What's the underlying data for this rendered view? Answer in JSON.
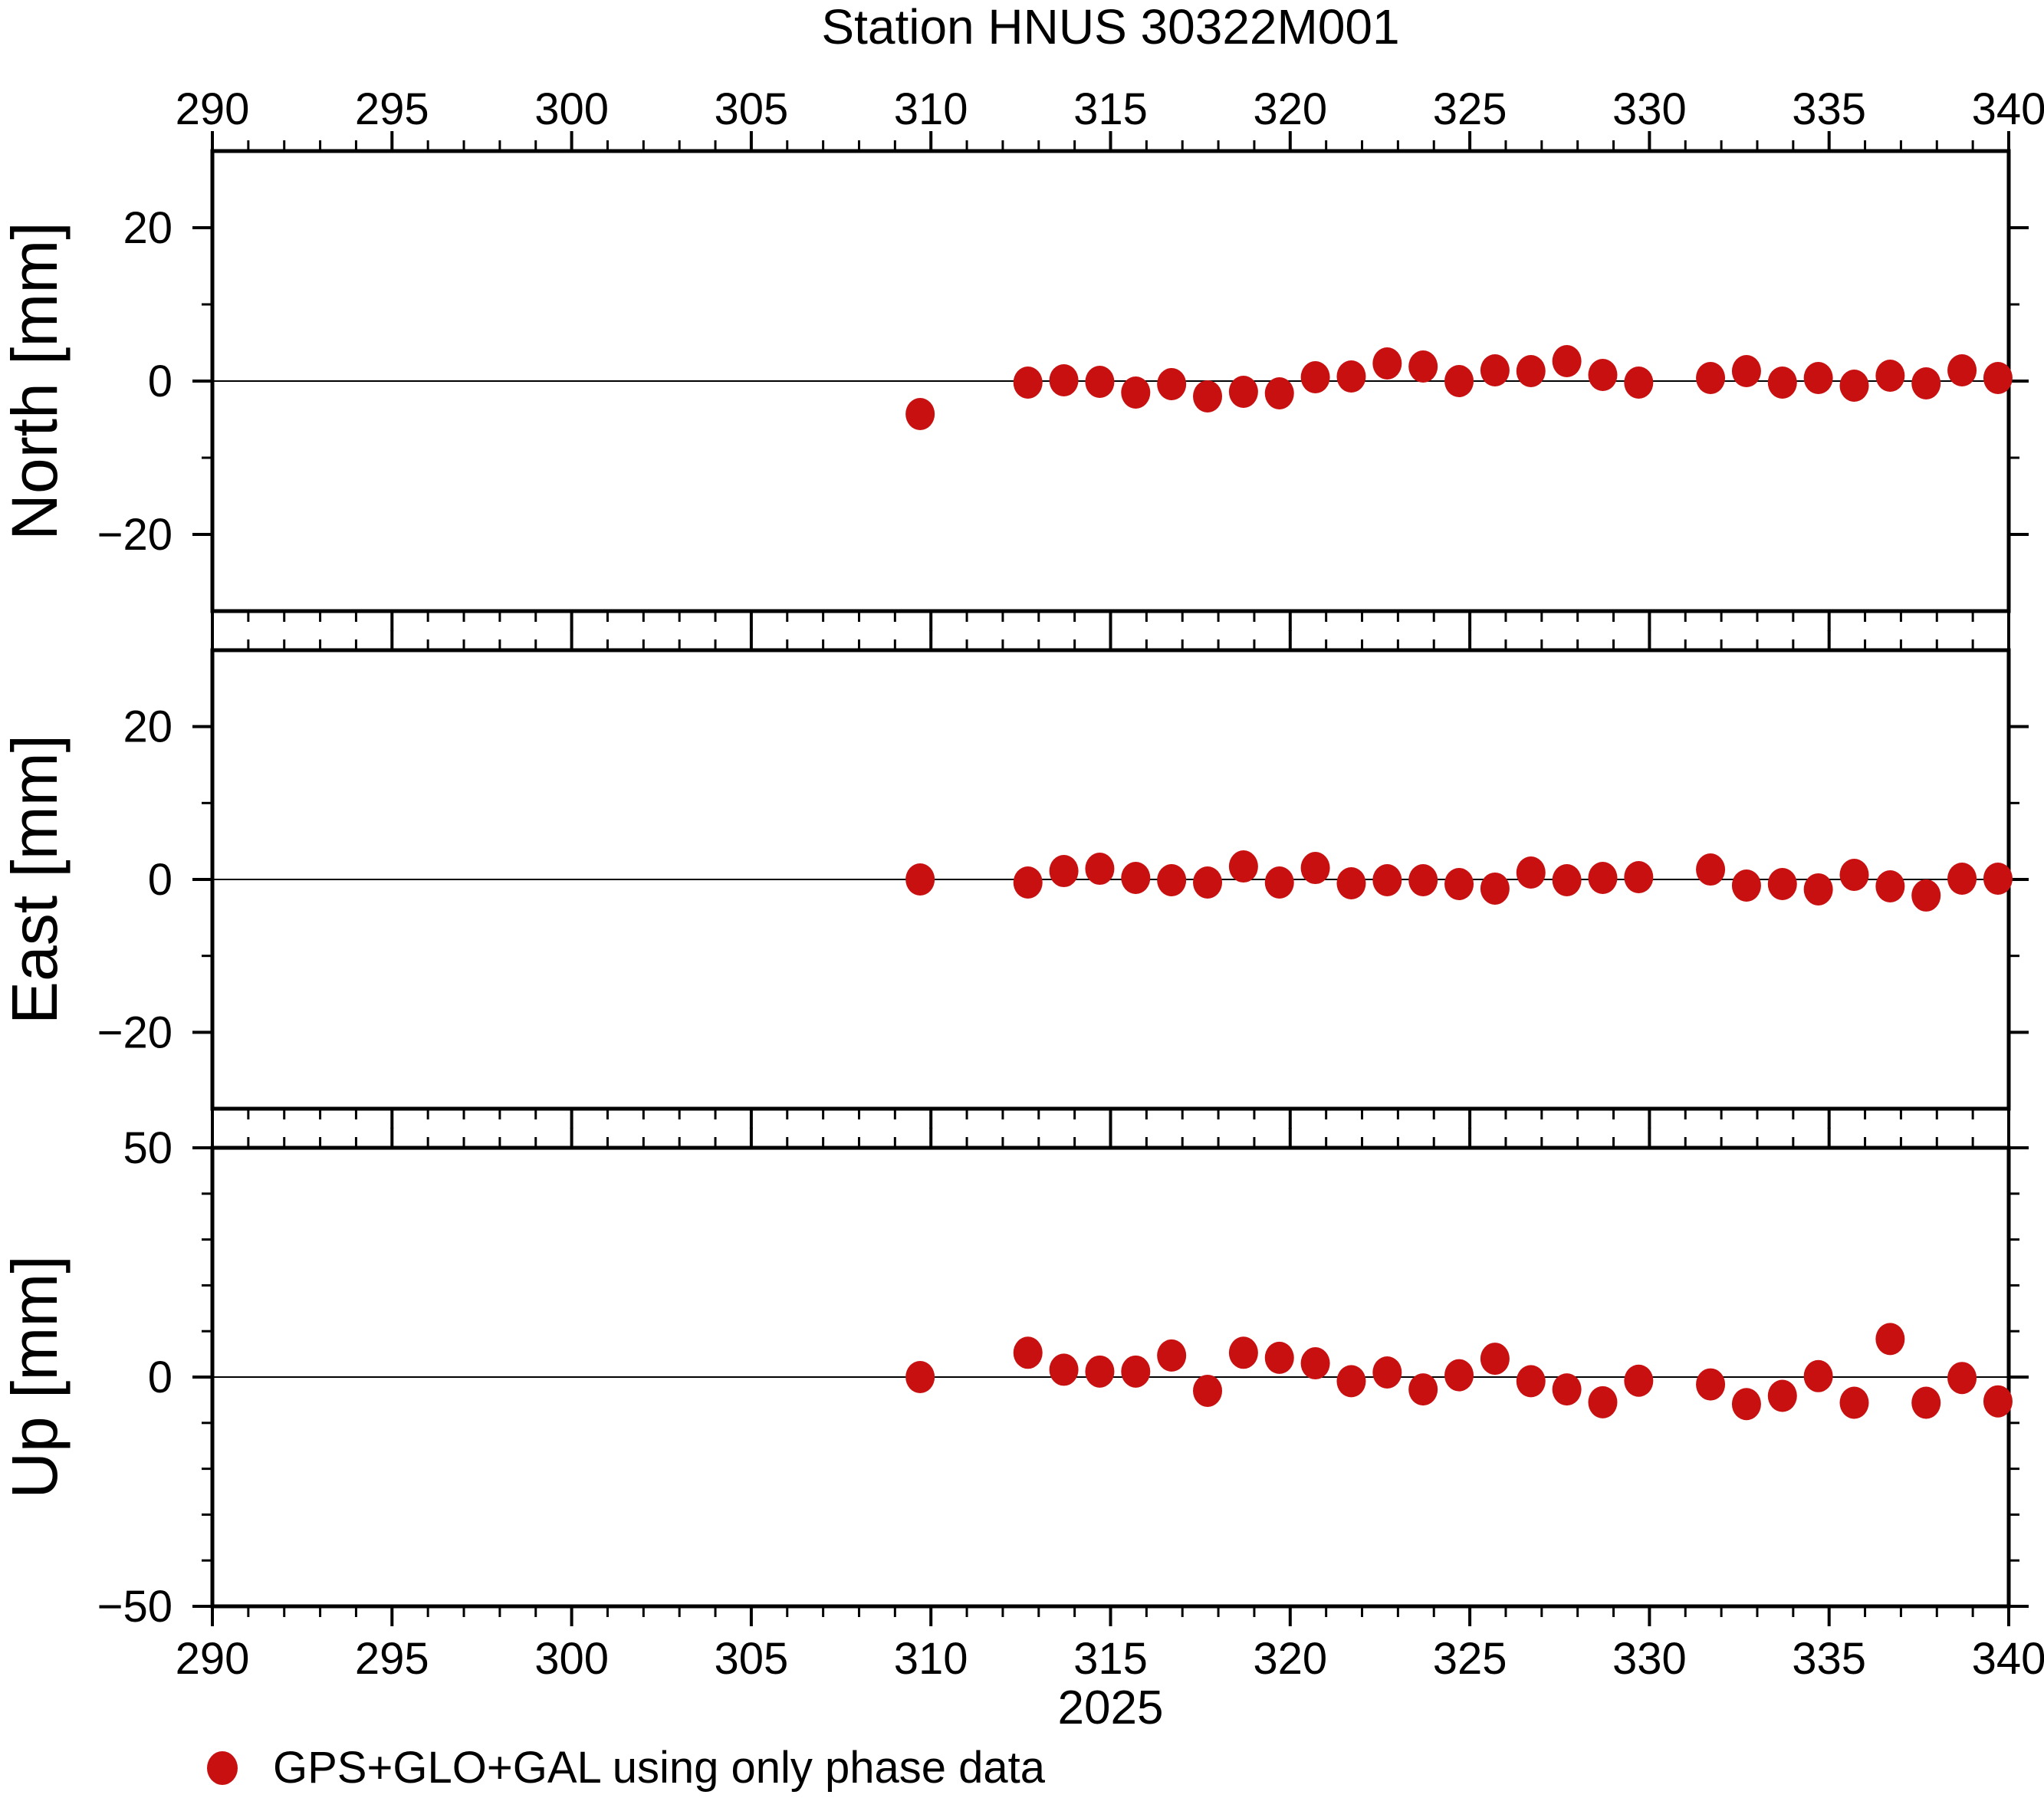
{
  "title": "Station HNUS 30322M001",
  "legend": {
    "marker": "red-dot",
    "label": "GPS+GLO+GAL using only phase data"
  },
  "x_axis": {
    "year_label": "2025",
    "min": 290,
    "max": 340,
    "major_step": 5,
    "minor_step": 1,
    "major_tick_labels": [
      "290",
      "295",
      "300",
      "305",
      "310",
      "315",
      "320",
      "325",
      "330",
      "335",
      "340"
    ]
  },
  "chart_data": {
    "type": "scatter",
    "marker_color": "#c81010",
    "grid": "zero-line-only",
    "legend_position": "bottom-left",
    "x": [
      309.7,
      312.7,
      313.7,
      314.7,
      315.7,
      316.7,
      317.7,
      318.7,
      319.7,
      320.7,
      321.7,
      322.7,
      323.7,
      324.7,
      325.7,
      326.7,
      327.7,
      328.7,
      329.7,
      331.7,
      332.7,
      333.7,
      334.7,
      335.7,
      336.7,
      337.7,
      338.7,
      339.7
    ],
    "series": [
      {
        "name": "North [mm]",
        "ylim": [
          -30,
          30
        ],
        "yticks_major": [
          -20,
          0,
          20
        ],
        "yticks_minor": [
          -10,
          10
        ],
        "values": [
          -4.3,
          -0.2,
          0.1,
          -0.1,
          -1.5,
          -0.4,
          -2.0,
          -1.4,
          -1.6,
          0.5,
          0.6,
          2.3,
          1.9,
          0.0,
          1.4,
          1.3,
          2.6,
          0.8,
          -0.2,
          0.4,
          1.3,
          -0.2,
          0.4,
          -0.6,
          0.7,
          -0.3,
          1.4,
          0.4
        ]
      },
      {
        "name": "East [mm]",
        "ylim": [
          -30,
          30
        ],
        "yticks_major": [
          -20,
          0,
          20
        ],
        "yticks_minor": [
          -10,
          10
        ],
        "values": [
          0.0,
          -0.4,
          1.1,
          1.4,
          0.2,
          -0.1,
          -0.4,
          1.7,
          -0.4,
          1.5,
          -0.5,
          -0.1,
          -0.1,
          -0.6,
          -1.2,
          0.9,
          -0.1,
          0.2,
          0.3,
          1.3,
          -0.8,
          -0.6,
          -1.3,
          0.6,
          -0.9,
          -2.1,
          0.1,
          0.1
        ]
      },
      {
        "name": "Up [mm]",
        "ylim": [
          -50,
          50
        ],
        "yticks_major": [
          -50,
          0,
          50
        ],
        "yticks_minor": [
          -40,
          -30,
          -20,
          -10,
          10,
          20,
          30,
          40
        ],
        "values": [
          0.0,
          5.3,
          1.6,
          1.2,
          1.2,
          4.7,
          -3.0,
          5.3,
          4.2,
          3.0,
          -0.9,
          1.0,
          -2.7,
          0.4,
          4.0,
          -0.9,
          -2.7,
          -5.5,
          -0.8,
          -1.6,
          -5.9,
          -4.1,
          0.2,
          -5.6,
          8.3,
          -5.6,
          -0.2,
          -5.3
        ]
      }
    ]
  }
}
